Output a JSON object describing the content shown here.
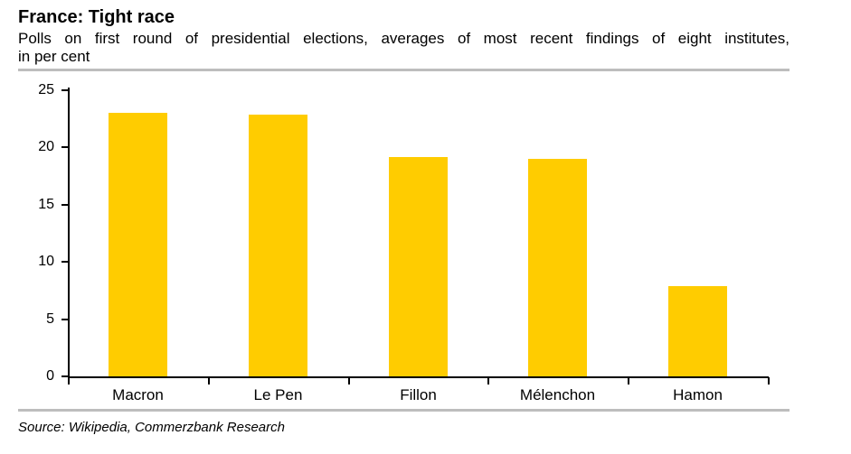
{
  "header": {
    "title": "France: Tight race",
    "subtitle_line1": "Polls on first round of presidential elections, averages of most recent findings of eight institutes,",
    "subtitle_line2": "in per cent"
  },
  "chart_data": {
    "type": "bar",
    "title": "France: Tight race",
    "subtitle": "Polls on first round of presidential elections, averages of most recent findings of eight institutes, in per cent",
    "categories": [
      "Macron",
      "Le Pen",
      "Fillon",
      "Mélenchon",
      "Hamon"
    ],
    "values": [
      23.0,
      22.9,
      19.2,
      19.0,
      7.9
    ],
    "xlabel": "",
    "ylabel": "",
    "ylim": [
      0,
      25
    ],
    "yticks": [
      0,
      5,
      10,
      15,
      20,
      25
    ],
    "grid": false,
    "legend": false,
    "bar_color": "#ffcc00",
    "axis_color": "#000000"
  },
  "footer": {
    "source": "Source: Wikipedia, Commerzbank Research"
  },
  "colors": {
    "bar": "#ffcc00",
    "divider_rule": "#bdbdbd",
    "text": "#000000",
    "background": "#ffffff"
  }
}
